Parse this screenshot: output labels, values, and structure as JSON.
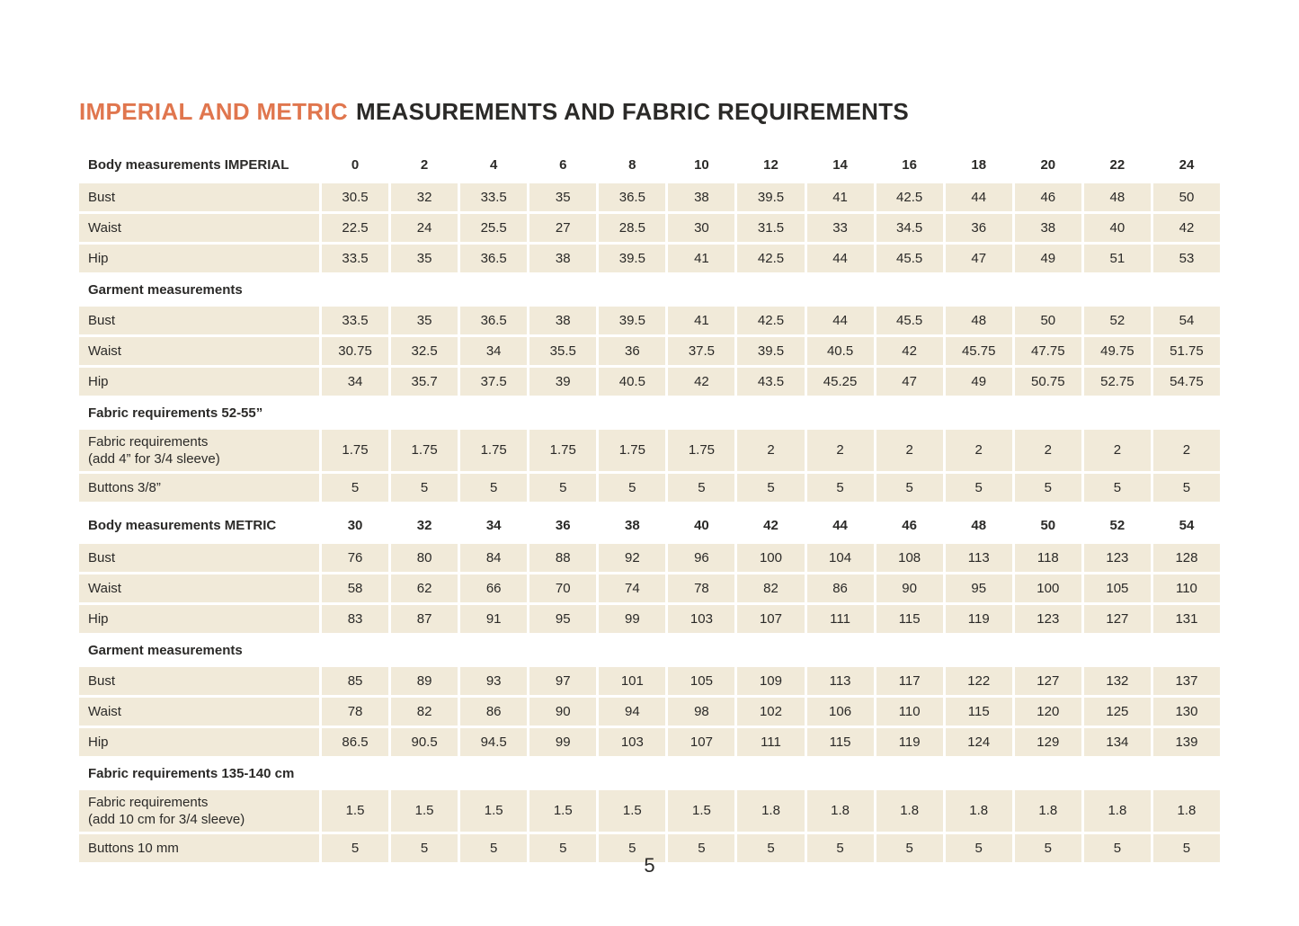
{
  "page": {
    "title_accent": "IMPERIAL AND METRIC",
    "title_rest": "MEASUREMENTS AND FABRIC REQUIREMENTS",
    "page_number": "5"
  },
  "colors": {
    "accent": "#E0764E",
    "row_bg": "#F1EAD9",
    "text": "#2B2A28"
  },
  "table": {
    "blocks": [
      {
        "kind": "sizes",
        "label": "Body measurements IMPERIAL",
        "values": [
          "0",
          "2",
          "4",
          "6",
          "8",
          "10",
          "12",
          "14",
          "16",
          "18",
          "20",
          "22",
          "24"
        ]
      },
      {
        "kind": "row",
        "label": "Bust",
        "values": [
          "30.5",
          "32",
          "33.5",
          "35",
          "36.5",
          "38",
          "39.5",
          "41",
          "42.5",
          "44",
          "46",
          "48",
          "50"
        ]
      },
      {
        "kind": "row",
        "label": "Waist",
        "values": [
          "22.5",
          "24",
          "25.5",
          "27",
          "28.5",
          "30",
          "31.5",
          "33",
          "34.5",
          "36",
          "38",
          "40",
          "42"
        ]
      },
      {
        "kind": "row",
        "label": "Hip",
        "values": [
          "33.5",
          "35",
          "36.5",
          "38",
          "39.5",
          "41",
          "42.5",
          "44",
          "45.5",
          "47",
          "49",
          "51",
          "53"
        ]
      },
      {
        "kind": "section",
        "label": "Garment measurements"
      },
      {
        "kind": "row",
        "label": "Bust",
        "values": [
          "33.5",
          "35",
          "36.5",
          "38",
          "39.5",
          "41",
          "42.5",
          "44",
          "45.5",
          "48",
          "50",
          "52",
          "54"
        ]
      },
      {
        "kind": "row",
        "label": "Waist",
        "values": [
          "30.75",
          "32.5",
          "34",
          "35.5",
          "36",
          "37.5",
          "39.5",
          "40.5",
          "42",
          "45.75",
          "47.75",
          "49.75",
          "51.75"
        ]
      },
      {
        "kind": "row",
        "label": "Hip",
        "values": [
          "34",
          "35.7",
          "37.5",
          "39",
          "40.5",
          "42",
          "43.5",
          "45.25",
          "47",
          "49",
          "50.75",
          "52.75",
          "54.75"
        ]
      },
      {
        "kind": "section",
        "label": "Fabric requirements 52-55”"
      },
      {
        "kind": "row",
        "tall": true,
        "label": "Fabric requirements",
        "label2": "(add 4” for 3/4 sleeve)",
        "values": [
          "1.75",
          "1.75",
          "1.75",
          "1.75",
          "1.75",
          "1.75",
          "2",
          "2",
          "2",
          "2",
          "2",
          "2",
          "2"
        ]
      },
      {
        "kind": "row",
        "label": "Buttons 3/8”",
        "values": [
          "5",
          "5",
          "5",
          "5",
          "5",
          "5",
          "5",
          "5",
          "5",
          "5",
          "5",
          "5",
          "5"
        ]
      },
      {
        "kind": "sizes",
        "gap_before": true,
        "label": "Body measurements METRIC",
        "values": [
          "30",
          "32",
          "34",
          "36",
          "38",
          "40",
          "42",
          "44",
          "46",
          "48",
          "50",
          "52",
          "54"
        ]
      },
      {
        "kind": "row",
        "label": "Bust",
        "values": [
          "76",
          "80",
          "84",
          "88",
          "92",
          "96",
          "100",
          "104",
          "108",
          "113",
          "118",
          "123",
          "128"
        ]
      },
      {
        "kind": "row",
        "label": "Waist",
        "values": [
          "58",
          "62",
          "66",
          "70",
          "74",
          "78",
          "82",
          "86",
          "90",
          "95",
          "100",
          "105",
          "110"
        ]
      },
      {
        "kind": "row",
        "label": "Hip",
        "values": [
          "83",
          "87",
          "91",
          "95",
          "99",
          "103",
          "107",
          "111",
          "115",
          "119",
          "123",
          "127",
          "131"
        ]
      },
      {
        "kind": "section",
        "label": "Garment measurements"
      },
      {
        "kind": "row",
        "label": "Bust",
        "values": [
          "85",
          "89",
          "93",
          "97",
          "101",
          "105",
          "109",
          "113",
          "117",
          "122",
          "127",
          "132",
          "137"
        ]
      },
      {
        "kind": "row",
        "label": "Waist",
        "values": [
          "78",
          "82",
          "86",
          "90",
          "94",
          "98",
          "102",
          "106",
          "110",
          "115",
          "120",
          "125",
          "130"
        ]
      },
      {
        "kind": "row",
        "label": "Hip",
        "values": [
          "86.5",
          "90.5",
          "94.5",
          "99",
          "103",
          "107",
          "111",
          "115",
          "119",
          "124",
          "129",
          "134",
          "139"
        ]
      },
      {
        "kind": "section",
        "label": "Fabric requirements 135-140 cm"
      },
      {
        "kind": "row",
        "tall": true,
        "label": "Fabric requirements",
        "label2": "(add 10 cm for 3/4 sleeve)",
        "values": [
          "1.5",
          "1.5",
          "1.5",
          "1.5",
          "1.5",
          "1.5",
          "1.8",
          "1.8",
          "1.8",
          "1.8",
          "1.8",
          "1.8",
          "1.8"
        ]
      },
      {
        "kind": "row",
        "label": "Buttons 10 mm",
        "values": [
          "5",
          "5",
          "5",
          "5",
          "5",
          "5",
          "5",
          "5",
          "5",
          "5",
          "5",
          "5",
          "5"
        ]
      }
    ]
  }
}
